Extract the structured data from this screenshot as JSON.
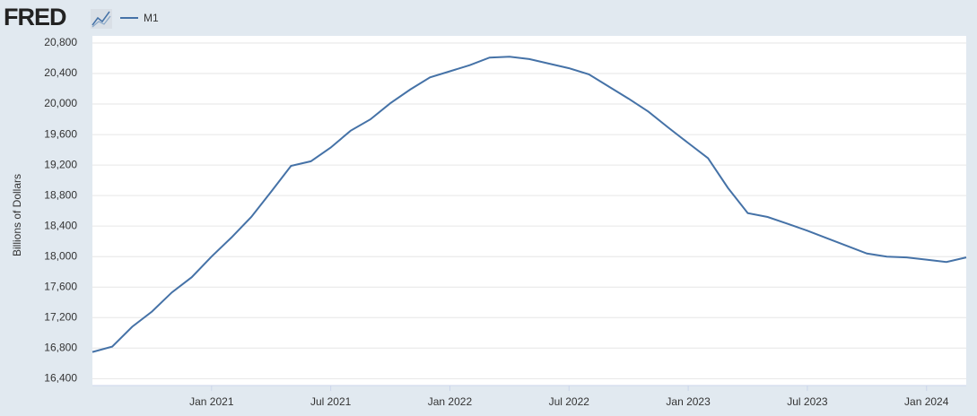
{
  "brand": "FRED",
  "chart_data": {
    "type": "line",
    "y_label": "Billions of Dollars",
    "x": [
      "2020-07",
      "2020-08",
      "2020-09",
      "2020-10",
      "2020-11",
      "2020-12",
      "2021-01",
      "2021-02",
      "2021-03",
      "2021-04",
      "2021-05",
      "2021-06",
      "2021-07",
      "2021-08",
      "2021-09",
      "2021-10",
      "2021-11",
      "2021-12",
      "2022-01",
      "2022-02",
      "2022-03",
      "2022-04",
      "2022-05",
      "2022-06",
      "2022-07",
      "2022-08",
      "2022-09",
      "2022-10",
      "2022-11",
      "2022-12",
      "2023-01",
      "2023-02",
      "2023-03",
      "2023-04",
      "2023-05",
      "2023-06",
      "2023-07",
      "2023-08",
      "2023-09",
      "2023-10",
      "2023-11",
      "2023-12",
      "2024-01",
      "2024-02",
      "2024-03"
    ],
    "series": [
      {
        "name": "M1",
        "color": "#4572a7",
        "values": [
          16750,
          16820,
          17080,
          17280,
          17530,
          17730,
          18000,
          18250,
          18520,
          18850,
          19190,
          19250,
          19430,
          19650,
          19800,
          20010,
          20190,
          20350,
          20430,
          20510,
          20610,
          20620,
          20590,
          20530,
          20470,
          20390,
          20230,
          20070,
          19900,
          19690,
          19490,
          19290,
          18900,
          18570,
          18520,
          18430,
          18340,
          18240,
          18140,
          18040,
          18000,
          17990,
          17960,
          17930,
          17990
        ]
      }
    ],
    "xlim": [
      "2020-07",
      "2024-03"
    ],
    "xticks": [
      {
        "value": "2021-01",
        "label": "Jan 2021"
      },
      {
        "value": "2021-07",
        "label": "Jul 2021"
      },
      {
        "value": "2022-01",
        "label": "Jan 2022"
      },
      {
        "value": "2022-07",
        "label": "Jul 2022"
      },
      {
        "value": "2023-01",
        "label": "Jan 2023"
      },
      {
        "value": "2023-07",
        "label": "Jul 2023"
      },
      {
        "value": "2024-01",
        "label": "Jan 2024"
      }
    ],
    "ylim": [
      16310,
      20800
    ],
    "yticks": [
      {
        "value": 16400,
        "label": "16,400"
      },
      {
        "value": 16800,
        "label": "16,800"
      },
      {
        "value": 17200,
        "label": "17,200"
      },
      {
        "value": 17600,
        "label": "17,600"
      },
      {
        "value": 18000,
        "label": "18,000"
      },
      {
        "value": 18400,
        "label": "18,400"
      },
      {
        "value": 18800,
        "label": "18,800"
      },
      {
        "value": 19200,
        "label": "19,200"
      },
      {
        "value": 19600,
        "label": "19,600"
      },
      {
        "value": 20000,
        "label": "20,000"
      },
      {
        "value": 20400,
        "label": "20,400"
      },
      {
        "value": 20800,
        "label": "20,800"
      }
    ],
    "grid": true
  }
}
